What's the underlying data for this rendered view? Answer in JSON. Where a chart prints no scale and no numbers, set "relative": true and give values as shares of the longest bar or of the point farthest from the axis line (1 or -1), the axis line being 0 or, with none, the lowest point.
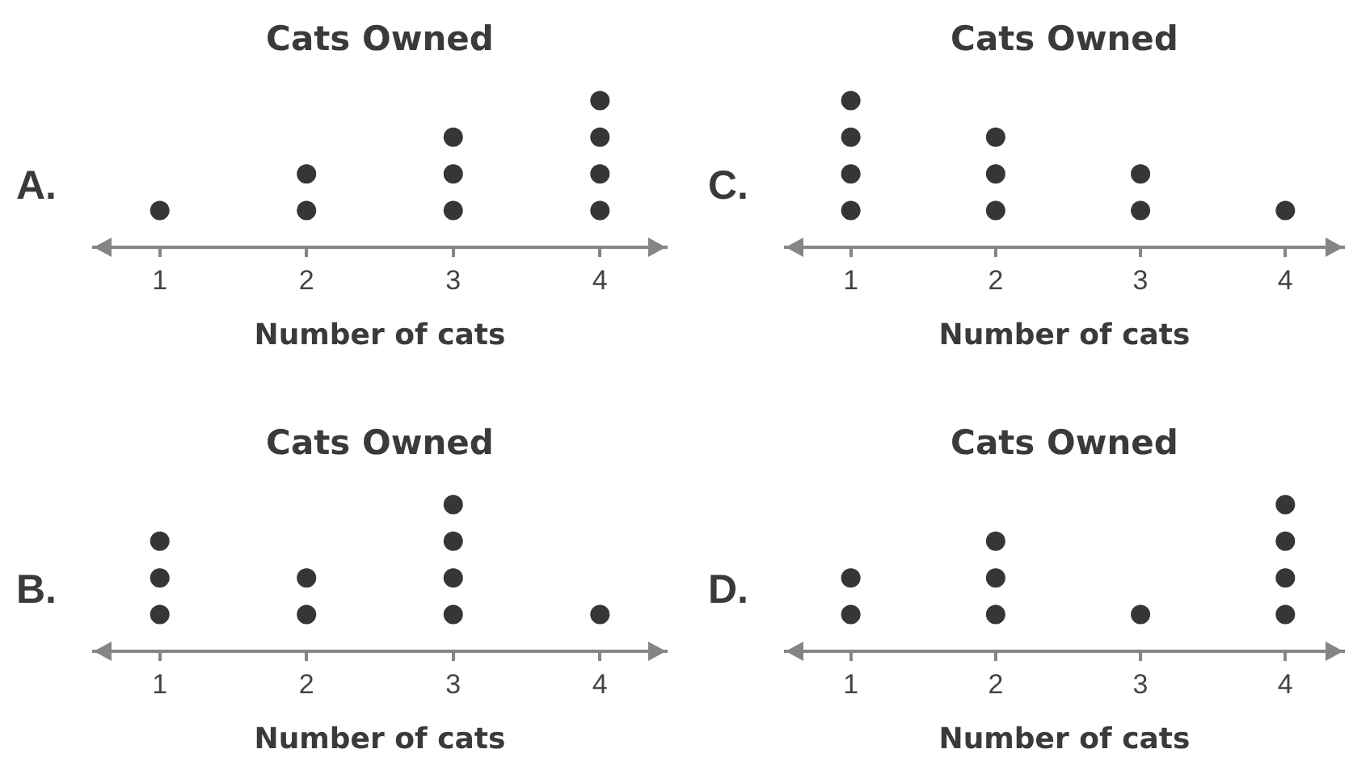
{
  "chart_data": [
    {
      "type": "scatter",
      "title": "Cats Owned",
      "xlabel": "Number of cats",
      "annotations": [
        "A."
      ],
      "x": [
        1,
        2,
        2,
        3,
        3,
        3,
        4,
        4,
        4,
        4
      ],
      "values": [
        0.25,
        0.25,
        0.5,
        0.25,
        0.5,
        0.75,
        0.25,
        0.5,
        0.75,
        1
      ],
      "color": "#363636",
      "relative": true,
      "xlim": [
        0.55,
        4.45
      ],
      "xticks": [
        1,
        2,
        3,
        4
      ],
      "tick_labels": "x",
      "marker": "circle"
    },
    {
      "type": "scatter",
      "title": "Cats Owned",
      "xlabel": "Number of cats",
      "annotations": [
        "C."
      ],
      "x": [
        1,
        1,
        1,
        1,
        2,
        2,
        2,
        3,
        3,
        4
      ],
      "values": [
        0.25,
        0.5,
        0.75,
        1,
        0.25,
        0.5,
        0.75,
        0.25,
        0.5,
        0.25
      ],
      "color": "#363636",
      "relative": true,
      "xlim": [
        0.55,
        4.4
      ],
      "xticks": [
        1,
        2,
        3,
        4
      ],
      "tick_labels": "x",
      "marker": "circle"
    },
    {
      "type": "scatter",
      "title": "Cats Owned",
      "xlabel": "Number of cats",
      "annotations": [
        "B."
      ],
      "x": [
        1,
        1,
        1,
        2,
        2,
        3,
        3,
        3,
        3,
        4
      ],
      "values": [
        0.25,
        0.5,
        0.75,
        0.25,
        0.5,
        0.25,
        0.5,
        0.75,
        1,
        0.25
      ],
      "color": "#363636",
      "relative": true,
      "xlim": [
        0.55,
        4.45
      ],
      "xticks": [
        1,
        2,
        3,
        4
      ],
      "tick_labels": "x",
      "marker": "circle"
    },
    {
      "type": "scatter",
      "title": "Cats Owned",
      "xlabel": "Number of cats",
      "annotations": [
        "D."
      ],
      "x": [
        1,
        1,
        2,
        2,
        2,
        3,
        4,
        4,
        4,
        4
      ],
      "values": [
        0.25,
        0.5,
        0.25,
        0.5,
        0.75,
        0.25,
        0.25,
        0.5,
        0.75,
        1
      ],
      "color": "#363636",
      "relative": true,
      "xlim": [
        0.55,
        4.4
      ],
      "xticks": [
        1,
        2,
        3,
        4
      ],
      "tick_labels": "x",
      "marker": "circle"
    }
  ]
}
